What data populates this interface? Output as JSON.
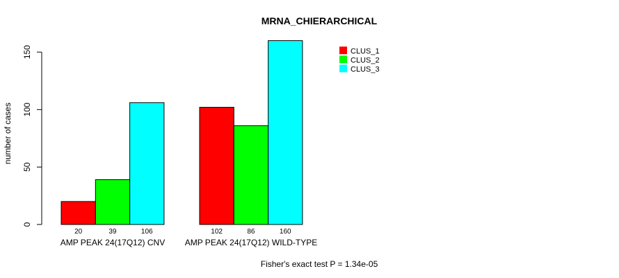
{
  "chart_data": {
    "type": "bar",
    "title": "MRNA_CHIERARCHICAL",
    "xlabel": "",
    "ylabel": "number of cases",
    "ylim": [
      0,
      160
    ],
    "yticks": [
      0,
      50,
      100,
      150
    ],
    "categories": [
      "AMP PEAK 24(17Q12) CNV",
      "AMP PEAK 24(17Q12) WILD-TYPE"
    ],
    "series": [
      {
        "name": "CLUS_1",
        "color": "#ff0000",
        "values": [
          20,
          102
        ]
      },
      {
        "name": "CLUS_2",
        "color": "#00ff00",
        "values": [
          39,
          86
        ]
      },
      {
        "name": "CLUS_3",
        "color": "#00ffff",
        "values": [
          106,
          160
        ]
      }
    ],
    "legend_position": "top-right",
    "annotation": "Fisher's exact test P = 1.34e-05",
    "grid": false
  }
}
